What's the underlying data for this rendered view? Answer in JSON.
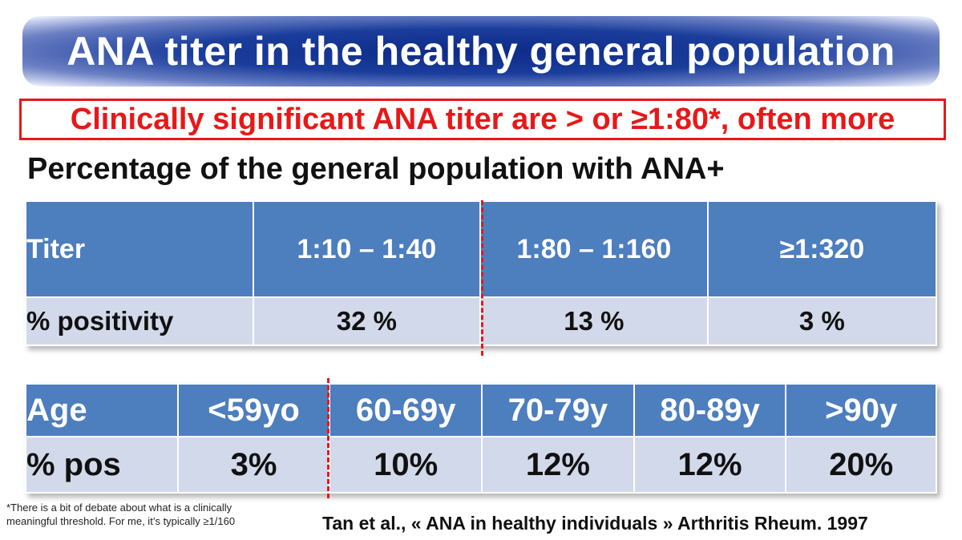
{
  "title": "ANA titer in the healthy general population",
  "callout": "Clinically significant ANA titer are > or ≥1:80*, often more",
  "subtitle": "Percentage of the general population with ANA+",
  "titer_table": {
    "header": [
      "Titer",
      "1:10 – 1:40",
      "1:80 – 1:160",
      "≥1:320"
    ],
    "row": [
      "% positivity",
      "32 %",
      "13 %",
      "3 %"
    ]
  },
  "age_table": {
    "header": [
      "Age",
      "<59yo",
      "60-69y",
      "70-79y",
      "80-89y",
      ">90y"
    ],
    "row": [
      "% pos",
      "3%",
      "10%",
      "12%",
      "12%",
      "20%"
    ]
  },
  "footnote": {
    "line1": "*There is a bit of debate about what is a clinically",
    "line2": "meaningful threshold. For me, it’s typically ≥1/160"
  },
  "citation": "Tan et al., « ANA in healthy individuals » Arthritis Rheum. 1997",
  "colors": {
    "header_fill": "#4d7ebe",
    "row_fill": "#d2d9ea",
    "accent_red": "#e81818",
    "title_blue": "#0e2a86"
  }
}
